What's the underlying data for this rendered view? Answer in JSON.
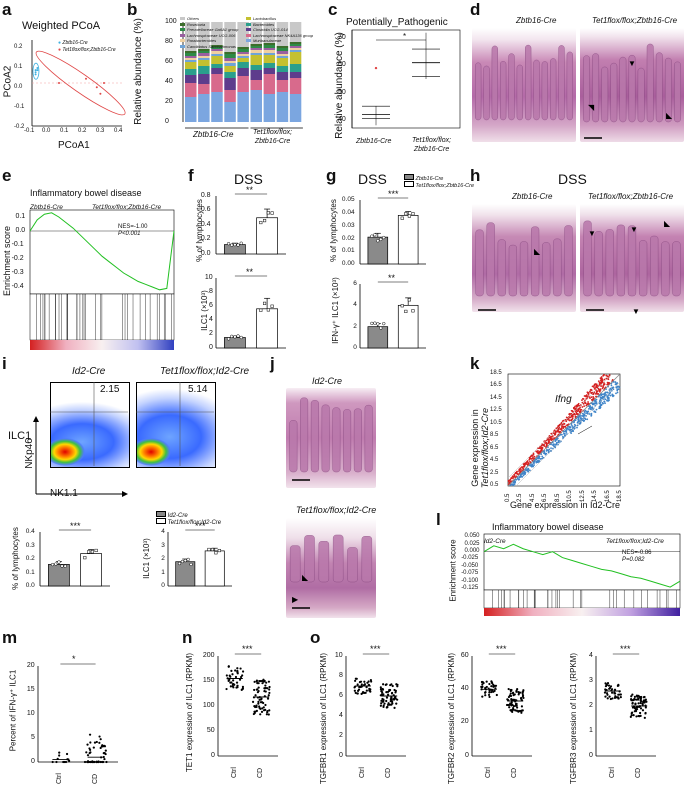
{
  "panel_letters": [
    "a",
    "b",
    "c",
    "d",
    "e",
    "f",
    "g",
    "h",
    "i",
    "j",
    "k",
    "l",
    "m",
    "n",
    "o"
  ],
  "a": {
    "title": "Weighted PCoA",
    "xlabel": "PCoA1",
    "ylabel": "PCoA2",
    "legend": [
      "Zbtb16-Cre",
      "Tet1flox/flox;Zbtb16-Cre"
    ],
    "xticks": [
      "-0.1",
      "0.0",
      "0.1",
      "0.2",
      "0.3",
      "0.4"
    ],
    "yticks": [
      "0.2",
      "0.1",
      "0.0",
      "-0.1",
      "-0.2"
    ]
  },
  "b": {
    "ylabel": "Relative abundance (%)",
    "yticks": [
      "100",
      "80",
      "60",
      "40",
      "20",
      "0"
    ],
    "legend": [
      "Others",
      "Roseburia",
      "Prevotellaceae Ga6A1 group",
      "Lachnospiraceae UCG-006",
      "Parabacteroides",
      "Candidatus Saccharimonas",
      "Lactobacillus",
      "Bacteroides",
      "Clostridia UCG-014",
      "Lachnospiraceae NK4A136 group",
      "Muribaculaceae"
    ],
    "group1": "Zbtb16-Cre",
    "group2a": "Tet1flox/flox;",
    "group2b": "Zbtb16-Cre"
  },
  "c": {
    "title": "Potentially_Pathogenic",
    "ylabel": "Relative abundance (%)",
    "yticks": [
      "70",
      "60",
      "50",
      "40"
    ],
    "xlabels": [
      "Zbtb16-Cre",
      "Tet1flox/flox;",
      "Zbtb16-Cre"
    ],
    "sig": "*"
  },
  "d": {
    "label1": "Zbtb16-Cre",
    "label2": "Tet1flox/flox;Zbtb16-Cre"
  },
  "e": {
    "title": "Inflammatory bowel disease",
    "ylabel": "Enrichment score",
    "left": "Zbtb16-Cre",
    "right": "Tet1flox/flox;Zbtb16-Cre",
    "nes": "NES=-1.00",
    "p": "P<0.001",
    "yticks": [
      "0.1",
      "0.0",
      "-0.1",
      "-0.2",
      "-0.3",
      "-0.4"
    ]
  },
  "f": {
    "title": "DSS",
    "ylabel_top": "% of lymphocytes",
    "ylabel_bot": "ILC1 (×10³)",
    "sig_top": "**",
    "sig_bot": "**",
    "yticks_top": [
      "0.8",
      "0.6",
      "0.4",
      "0.2",
      "0.0"
    ],
    "yticks_bot": [
      "10",
      "8",
      "6",
      "4",
      "2",
      "0"
    ]
  },
  "g": {
    "title": "DSS",
    "legend": [
      "Zbtb16-Cre",
      "Tet1flox/flox;Zbtb16-Cre"
    ],
    "ylabel_top": "% of lymphocytes",
    "ylabel_bot": "IFN-γ⁺ ILC1 (×10³)",
    "sig_top": "***",
    "sig_bot": "**",
    "yticks_top": [
      "0.05",
      "0.04",
      "0.03",
      "0.02",
      "0.01",
      "0.00"
    ],
    "yticks_bot": [
      "6",
      "4",
      "2",
      "0"
    ]
  },
  "h": {
    "title": "DSS",
    "label1": "Zbtb16-Cre",
    "label2": "Tet1flox/flox;Zbtb16-Cre"
  },
  "i": {
    "title1": "Id2-Cre",
    "title2": "Tet1flox/flox;Id2-Cre",
    "val1": "2.15",
    "val2": "5.14",
    "pop": "ILC1",
    "ylab": "NKp46",
    "xlab": "NK1.1",
    "legend": [
      "Id2-Cre",
      "Tet1flox/flox;Id2-Cre"
    ],
    "ylabel_left": "% of lymphocytes",
    "ylabel_right": "ILC1 (×10³)",
    "sig_left": "***",
    "sig_right": "***",
    "yticks_left": [
      "0.4",
      "0.3",
      "0.2",
      "0.1",
      "0.0"
    ],
    "yticks_right": [
      "4",
      "3",
      "2",
      "1",
      "0"
    ]
  },
  "j": {
    "label1": "Id2-Cre",
    "label2": "Tet1flox/flox;Id2-Cre"
  },
  "k": {
    "gene": "Ifng",
    "ylabel1": "Gene expression in",
    "ylabel2": "Tet1flox/flox;Id2-Cre",
    "xlabel": "Gene expression in Id2-Cre",
    "ticks": [
      "0.5",
      "2.5",
      "4.5",
      "6.5",
      "8.5",
      "10.5",
      "12.5",
      "14.5",
      "16.5",
      "18.5"
    ]
  },
  "l": {
    "title": "Inflammatory bowel disease",
    "ylabel": "Enrichment score",
    "left": "Id2-Cre",
    "right": "Tet1flox/flox;Id2-Cre",
    "nes": "NES=-0.86",
    "p": "P=0.082",
    "yticks": [
      "0.050",
      "0.025",
      "0.000",
      "-0.025",
      "-0.050",
      "-0.075",
      "-0.100",
      "-0.125"
    ]
  },
  "m": {
    "ylabel": "Percent of IFN-γ⁺ ILC1",
    "xlabels": [
      "Ctrl",
      "CD"
    ],
    "sig": "*",
    "yticks": [
      "20",
      "15",
      "10",
      "5",
      "0"
    ]
  },
  "n": {
    "ylabel": "TET1 expression of ILC1 (RPKM)",
    "xlabels": [
      "Ctrl",
      "CD"
    ],
    "sig": "***",
    "yticks": [
      "200",
      "150",
      "100",
      "50",
      "0"
    ]
  },
  "o": {
    "panels": [
      {
        "ylabel": "TGFBR1 expression of ILC1 (RPKM)",
        "yticks": [
          "10",
          "8",
          "6",
          "4",
          "2",
          "0"
        ]
      },
      {
        "ylabel": "TGFBR2 expression of ILC1 (RPKM)",
        "yticks": [
          "60",
          "40",
          "20",
          "0"
        ]
      },
      {
        "ylabel": "TGFBR3 expression of ILC1 (RPKM)",
        "yticks": [
          "4",
          "3",
          "2",
          "1",
          "0"
        ]
      }
    ],
    "xlabels": [
      "Ctrl",
      "CD"
    ],
    "sig": "***"
  },
  "chart_data": [
    {
      "type": "scatter",
      "panel": "a",
      "title": "Weighted PCoA",
      "xlabel": "PCoA1",
      "ylabel": "PCoA2",
      "xlim": [
        -0.1,
        0.4
      ],
      "ylim": [
        -0.2,
        0.2
      ],
      "series": [
        {
          "name": "Zbtb16-Cre",
          "x": [
            -0.08,
            -0.08,
            -0.07,
            -0.08,
            -0.07
          ],
          "y": [
            0.06,
            0.05,
            0.07,
            0.04,
            0.06
          ],
          "color": "#3fb0e0"
        },
        {
          "name": "Tet1flox/flox;Zbtb16-Cre",
          "x": [
            0.05,
            0.2,
            0.26,
            0.28,
            0.3
          ],
          "y": [
            0.0,
            0.02,
            -0.02,
            -0.05,
            0.0
          ],
          "color": "#e04848"
        }
      ]
    },
    {
      "type": "bar",
      "panel": "b",
      "ylabel": "Relative abundance (%)",
      "ylim": [
        0,
        100
      ],
      "categories": [
        "1",
        "2",
        "3",
        "4",
        "5",
        "6",
        "7",
        "8",
        "9"
      ],
      "series": [
        {
          "name": "Muribaculaceae",
          "values": [
            25,
            28,
            30,
            20,
            30,
            32,
            28,
            30,
            28
          ]
        },
        {
          "name": "Lachnospiraceae NK4A136 group",
          "values": [
            14,
            10,
            18,
            12,
            16,
            10,
            20,
            12,
            16
          ]
        },
        {
          "name": "Clostridia UCG-014",
          "values": [
            8,
            10,
            6,
            12,
            8,
            10,
            6,
            8,
            6
          ]
        },
        {
          "name": "Bacteroides",
          "values": [
            6,
            8,
            4,
            6,
            6,
            5,
            5,
            6,
            8
          ]
        },
        {
          "name": "Lactobacillus",
          "values": [
            7,
            6,
            8,
            6,
            4,
            10,
            8,
            8,
            12
          ]
        },
        {
          "name": "Candidatus Saccharimonas",
          "values": [
            2,
            2,
            2,
            3,
            2,
            2,
            2,
            2,
            2
          ]
        },
        {
          "name": "Parabacteroides",
          "values": [
            2,
            2,
            3,
            2,
            2,
            3,
            3,
            2,
            2
          ]
        },
        {
          "name": "Lachnospiraceae UCG-006",
          "values": [
            2,
            3,
            2,
            3,
            2,
            2,
            2,
            3,
            2
          ]
        },
        {
          "name": "Prevotellaceae Ga6A1 group",
          "values": [
            3,
            2,
            2,
            4,
            3,
            2,
            3,
            3,
            2
          ]
        },
        {
          "name": "Roseburia",
          "values": [
            2,
            2,
            2,
            2,
            2,
            2,
            2,
            2,
            2
          ]
        },
        {
          "name": "Others",
          "values": [
            29,
            27,
            23,
            30,
            25,
            22,
            21,
            24,
            20
          ]
        }
      ]
    },
    {
      "type": "scatter",
      "panel": "c",
      "title": "Potentially_Pathogenic",
      "ylabel": "Relative abundance (%)",
      "ylim": [
        37,
        73
      ],
      "categories": [
        "Zbtb16-Cre",
        "Tet1flox/flox;Zbtb16-Cre"
      ],
      "box": [
        {
          "median": 42,
          "q1": 40.5,
          "q3": 45,
          "min": 38,
          "max": 45,
          "outlier": 59
        },
        {
          "median": 61,
          "q1": 56,
          "q3": 66,
          "min": 55,
          "max": 72
        }
      ]
    },
    {
      "type": "line",
      "panel": "e",
      "title": "Inflammatory bowel disease",
      "ylabel": "Enrichment score",
      "ylim": [
        -0.45,
        0.15
      ],
      "x": [
        0,
        5,
        10,
        15,
        20,
        25,
        30,
        35,
        40,
        45,
        50,
        55,
        60,
        65,
        70,
        75,
        80,
        85,
        90,
        95,
        100
      ],
      "y": [
        0,
        0.08,
        0.12,
        0.13,
        0.1,
        0.06,
        0.02,
        -0.03,
        -0.08,
        -0.13,
        -0.18,
        -0.22,
        -0.26,
        -0.3,
        -0.33,
        -0.36,
        -0.38,
        -0.4,
        -0.42,
        -0.41,
        0.0
      ]
    },
    {
      "type": "bar",
      "panel": "f-top",
      "ylabel": "% of lymphocytes",
      "ylim": [
        0,
        0.8
      ],
      "categories": [
        "Zbtb16-Cre",
        "Tet1flox/flox;Zbtb16-Cre"
      ],
      "values": [
        0.13,
        0.5
      ],
      "errors": [
        0.02,
        0.12
      ]
    },
    {
      "type": "bar",
      "panel": "f-bottom",
      "ylabel": "ILC1 (×10³)",
      "ylim": [
        0,
        10
      ],
      "categories": [
        "Zbtb16-Cre",
        "Tet1flox/flox;Zbtb16-Cre"
      ],
      "values": [
        1.5,
        5.6
      ],
      "errors": [
        0.2,
        1.5
      ]
    },
    {
      "type": "bar",
      "panel": "g-top",
      "ylabel": "% of lymphocytes",
      "ylim": [
        0,
        0.05
      ],
      "categories": [
        "Zbtb16-Cre",
        "Tet1flox/flox;Zbtb16-Cre"
      ],
      "values": [
        0.021,
        0.038
      ],
      "errors": [
        0.003,
        0.003
      ]
    },
    {
      "type": "bar",
      "panel": "g-bottom",
      "ylabel": "IFN-γ⁺ ILC1 (×10³)",
      "ylim": [
        0,
        6
      ],
      "categories": [
        "Zbtb16-Cre",
        "Tet1flox/flox;Zbtb16-Cre"
      ],
      "values": [
        2.0,
        4.0
      ],
      "errors": [
        0.3,
        0.7
      ]
    },
    {
      "type": "bar",
      "panel": "i-left",
      "ylabel": "% of lymphocytes",
      "ylim": [
        0,
        0.4
      ],
      "categories": [
        "Id2-Cre",
        "Tet1flox/flox;Id2-Cre"
      ],
      "values": [
        0.16,
        0.24
      ],
      "errors": [
        0.02,
        0.03
      ]
    },
    {
      "type": "bar",
      "panel": "i-right",
      "ylabel": "ILC1 (×10³)",
      "ylim": [
        0,
        4
      ],
      "categories": [
        "Id2-Cre",
        "Tet1flox/flox;Id2-Cre"
      ],
      "values": [
        1.8,
        2.6
      ],
      "errors": [
        0.2,
        0.2
      ]
    },
    {
      "type": "line",
      "panel": "l",
      "title": "Inflammatory bowel disease",
      "ylabel": "Enrichment score",
      "ylim": [
        -0.13,
        0.06
      ],
      "x": [
        0,
        5,
        10,
        15,
        20,
        25,
        30,
        35,
        40,
        45,
        50,
        55,
        60,
        65,
        70,
        75,
        80,
        85,
        90,
        95,
        100
      ],
      "y": [
        0.0,
        0.02,
        0.01,
        0.025,
        0.01,
        0.0,
        -0.01,
        0.0,
        -0.02,
        -0.03,
        -0.04,
        -0.05,
        -0.06,
        -0.065,
        -0.075,
        -0.085,
        -0.09,
        -0.1,
        -0.11,
        -0.12,
        -0.1
      ]
    },
    {
      "type": "scatter",
      "panel": "m",
      "ylabel": "Percent of IFN-γ⁺ ILC1",
      "ylim": [
        0,
        20
      ],
      "categories": [
        "Ctrl",
        "CD"
      ],
      "values": [
        0.5,
        1.0
      ]
    },
    {
      "type": "scatter",
      "panel": "n",
      "ylabel": "TET1 expression of ILC1 (RPKM)",
      "ylim": [
        0,
        200
      ],
      "categories": [
        "Ctrl",
        "CD"
      ],
      "values": [
        155,
        118
      ]
    },
    {
      "type": "scatter",
      "panel": "o1",
      "ylabel": "TGFBR1 expression of ILC1 (RPKM)",
      "ylim": [
        0,
        10
      ],
      "categories": [
        "Ctrl",
        "CD"
      ],
      "values": [
        7,
        6
      ]
    },
    {
      "type": "scatter",
      "panel": "o2",
      "ylabel": "TGFBR2 expression of ILC1 (RPKM)",
      "ylim": [
        0,
        60
      ],
      "categories": [
        "Ctrl",
        "CD"
      ],
      "values": [
        40,
        33
      ]
    },
    {
      "type": "scatter",
      "panel": "o3",
      "ylabel": "TGFBR3 expression of ILC1 (RPKM)",
      "ylim": [
        0,
        4
      ],
      "categories": [
        "Ctrl",
        "CD"
      ],
      "values": [
        2.6,
        2.0
      ]
    }
  ]
}
